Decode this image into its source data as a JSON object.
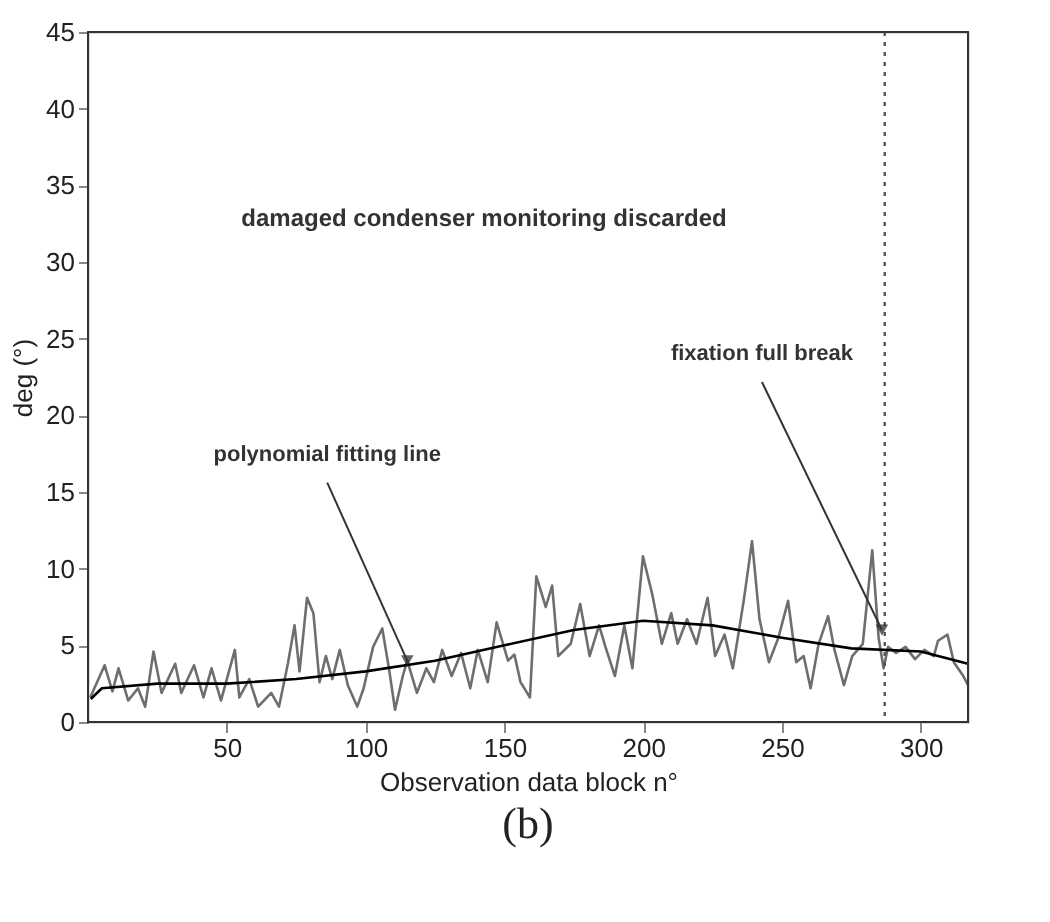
{
  "chart_data": {
    "type": "line",
    "xlabel": "Observation data block n°",
    "ylabel": "deg (°)",
    "xlim": [
      0,
      317
    ],
    "xticks": [
      50,
      100,
      150,
      200,
      250,
      300
    ],
    "ylim": [
      0,
      45
    ],
    "yticks": [
      0,
      5,
      10,
      15,
      20,
      25,
      30,
      35,
      40,
      45
    ],
    "grid": false,
    "line_style": "solid",
    "marker": "none",
    "series": [
      {
        "color": "#6e6e6e",
        "x": [
          0.8,
          6,
          8.8,
          11,
          14.5,
          18,
          20.6,
          23.6,
          26.5,
          31.4,
          33.6,
          38.2,
          41.6,
          44.5,
          47.9,
          52.9,
          54.5,
          58.1,
          61.3,
          66,
          68.8,
          72,
          74.4,
          76.2,
          78.9,
          81.2,
          83.4,
          85.7,
          88,
          90.7,
          93.6,
          97,
          99.3,
          102.7,
          106,
          108.4,
          110.6,
          113.4,
          115,
          118.5,
          121.9,
          124.6,
          127.6,
          131,
          134.4,
          137.7,
          140.4,
          144,
          147.2,
          151.3,
          153.6,
          155.8,
          159.2,
          161.5,
          164.9,
          167.2,
          169.4,
          173.9,
          177.3,
          180.7,
          184.1,
          186.4,
          189.8,
          193.2,
          196.1,
          199.9,
          203.3,
          206.7,
          210.1,
          212.4,
          215.8,
          219.2,
          223.2,
          225.9,
          229.3,
          232.3,
          236.2,
          239.2,
          241.9,
          245.3,
          248.7,
          252.2,
          255.1,
          257.8,
          260.3,
          263.2,
          266.6,
          268.9,
          272.3,
          275.3,
          279.1,
          282.5,
          284.8,
          286.6,
          288.2,
          291.1,
          294.5,
          297.9,
          301.3,
          304.7,
          306.2,
          309.6,
          311.9,
          315.3,
          317
        ],
        "values": [
          1.6,
          3.7,
          2.0,
          3.5,
          1.4,
          2.2,
          1.0,
          4.6,
          1.9,
          3.8,
          1.9,
          3.7,
          1.6,
          3.5,
          1.4,
          4.7,
          1.6,
          2.8,
          1.0,
          1.9,
          1.0,
          3.8,
          6.3,
          3.3,
          8.1,
          7.1,
          2.6,
          4.3,
          2.8,
          4.7,
          2.4,
          1.0,
          2.2,
          4.9,
          6.1,
          3.5,
          0.8,
          3.0,
          4.0,
          1.9,
          3.5,
          2.6,
          4.7,
          3.0,
          4.5,
          2.2,
          4.7,
          2.6,
          6.5,
          4.0,
          4.4,
          2.6,
          1.6,
          9.5,
          7.5,
          8.9,
          4.3,
          5.1,
          7.7,
          4.3,
          6.3,
          4.9,
          3.0,
          6.3,
          3.5,
          10.8,
          8.3,
          5.1,
          7.1,
          5.1,
          6.7,
          5.1,
          8.1,
          4.3,
          5.7,
          3.5,
          7.9,
          11.8,
          6.7,
          3.9,
          5.5,
          7.9,
          3.9,
          4.3,
          2.2,
          5.1,
          6.9,
          4.7,
          2.4,
          4.3,
          5.1,
          11.2,
          5.5,
          3.5,
          4.9,
          4.5,
          4.9,
          4.1,
          4.7,
          4.3,
          5.3,
          5.7,
          3.9,
          3.0,
          2.4
        ]
      },
      {
        "color": "#000000",
        "x": [
          1,
          5,
          25,
          50,
          75,
          100,
          125,
          150,
          175,
          200,
          225,
          250,
          275,
          300,
          317
        ],
        "values": [
          1.5,
          2.2,
          2.5,
          2.5,
          2.8,
          3.3,
          4.0,
          5.0,
          6.0,
          6.6,
          6.3,
          5.5,
          4.8,
          4.6,
          3.8
        ]
      }
    ],
    "ref_lines": [
      {
        "axis": "x",
        "value": 287,
        "line_style": "dotted",
        "color": "#555555"
      }
    ],
    "annotations": [
      {
        "text": "polynomial fitting line",
        "x": 115,
        "y": 4.0
      },
      {
        "text": "fixation full break",
        "x": 286,
        "y": 6.0
      },
      "damaged condenser monitoring discarded",
      "(b)"
    ]
  }
}
